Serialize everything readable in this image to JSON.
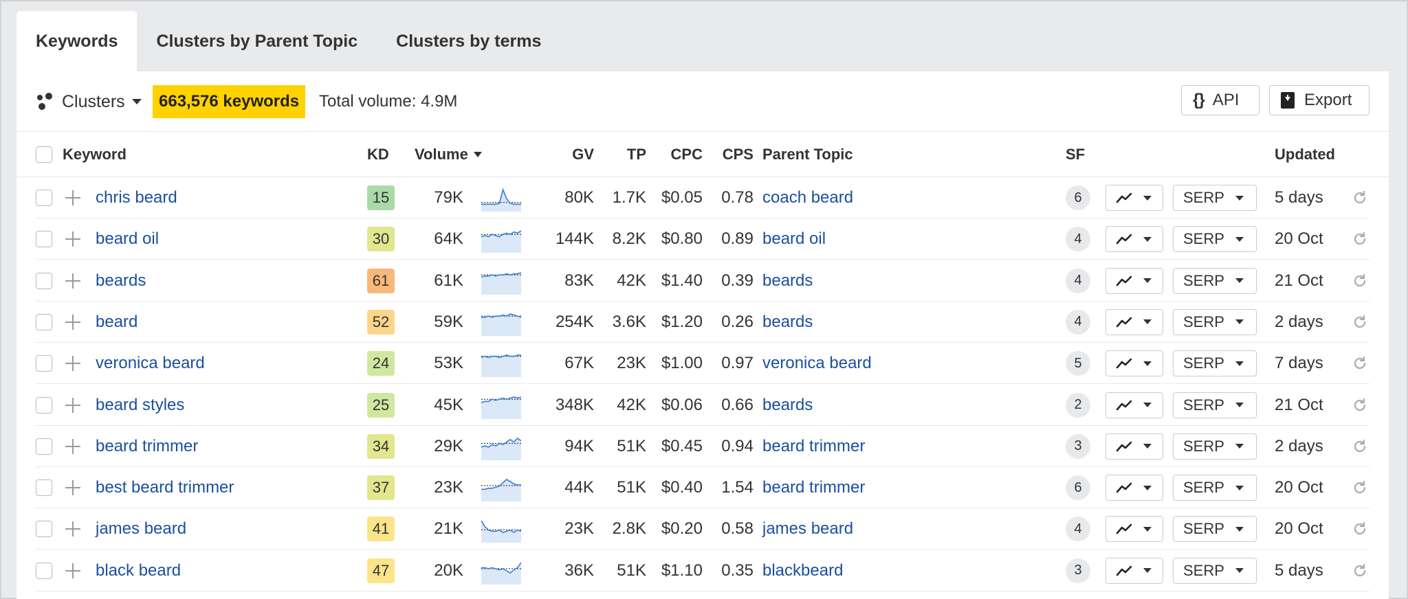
{
  "tabs": [
    {
      "label": "Keywords",
      "active": true
    },
    {
      "label": "Clusters by Parent Topic",
      "active": false
    },
    {
      "label": "Clusters by terms",
      "active": false
    }
  ],
  "toolbar": {
    "clusters_label": "Clusters",
    "keywords_count": "663,576 keywords",
    "total_volume": "Total volume: 4.9M",
    "api_label": "API",
    "export_label": "Export"
  },
  "columns": {
    "keyword": "Keyword",
    "kd": "KD",
    "volume": "Volume",
    "gv": "GV",
    "tp": "TP",
    "cpc": "CPC",
    "cps": "CPS",
    "parent_topic": "Parent Topic",
    "sf": "SF",
    "updated": "Updated"
  },
  "colors": {
    "kd_green": "#a8dba8",
    "kd_lightgreen": "#cfe8a0",
    "kd_yellowgreen": "#e2e68e",
    "kd_yellow": "#fbe48a",
    "kd_lightorange": "#fdd58a",
    "kd_orange": "#f9b87a",
    "link": "#1b4fa0",
    "highlight": "#ffd200"
  },
  "rows": [
    {
      "keyword": "chris beard",
      "kd": "15",
      "kd_color": "#a8dba8",
      "volume": "79K",
      "trend": [
        2,
        2,
        2,
        2,
        2,
        3,
        18,
        8,
        3,
        2,
        2,
        2
      ],
      "gv": "80K",
      "tp": "1.7K",
      "cpc": "$0.05",
      "cps": "0.78",
      "parent_topic": "coach beard",
      "sf": "6",
      "serp": "SERP",
      "updated": "5 days"
    },
    {
      "keyword": "beard oil",
      "kd": "30",
      "kd_color": "#e2e68e",
      "volume": "64K",
      "trend": [
        9,
        10,
        9,
        11,
        10,
        9,
        11,
        12,
        11,
        13,
        12,
        14
      ],
      "gv": "144K",
      "tp": "8.2K",
      "cpc": "$0.80",
      "cps": "0.89",
      "parent_topic": "beard oil",
      "sf": "4",
      "serp": "SERP",
      "updated": "20 Oct"
    },
    {
      "keyword": "beards",
      "kd": "61",
      "kd_color": "#f9b87a",
      "volume": "61K",
      "trend": [
        11,
        12,
        12,
        13,
        12,
        13,
        13,
        14,
        13,
        14,
        14,
        15
      ],
      "gv": "83K",
      "tp": "42K",
      "cpc": "$1.40",
      "cps": "0.39",
      "parent_topic": "beards",
      "sf": "4",
      "serp": "SERP",
      "updated": "21 Oct"
    },
    {
      "keyword": "beard",
      "kd": "52",
      "kd_color": "#fdd58a",
      "volume": "59K",
      "trend": [
        12,
        12,
        13,
        12,
        13,
        13,
        14,
        13,
        15,
        14,
        13,
        12
      ],
      "gv": "254K",
      "tp": "3.6K",
      "cpc": "$1.20",
      "cps": "0.26",
      "parent_topic": "beards",
      "sf": "4",
      "serp": "SERP",
      "updated": "2 days"
    },
    {
      "keyword": "veronica beard",
      "kd": "24",
      "kd_color": "#cfe8a0",
      "volume": "53K",
      "trend": [
        12,
        13,
        12,
        13,
        13,
        12,
        13,
        14,
        13,
        13,
        14,
        14
      ],
      "gv": "67K",
      "tp": "23K",
      "cpc": "$1.00",
      "cps": "0.97",
      "parent_topic": "veronica beard",
      "sf": "5",
      "serp": "SERP",
      "updated": "7 days"
    },
    {
      "keyword": "beard styles",
      "kd": "25",
      "kd_color": "#cfe8a0",
      "volume": "45K",
      "trend": [
        10,
        11,
        11,
        13,
        12,
        13,
        14,
        13,
        14,
        15,
        14,
        15
      ],
      "gv": "348K",
      "tp": "42K",
      "cpc": "$0.06",
      "cps": "0.66",
      "parent_topic": "beards",
      "sf": "2",
      "serp": "SERP",
      "updated": "21 Oct"
    },
    {
      "keyword": "beard trimmer",
      "kd": "34",
      "kd_color": "#e2e68e",
      "volume": "29K",
      "trend": [
        6,
        7,
        6,
        8,
        7,
        9,
        8,
        10,
        12,
        10,
        13,
        11
      ],
      "gv": "94K",
      "tp": "51K",
      "cpc": "$0.45",
      "cps": "0.94",
      "parent_topic": "beard trimmer",
      "sf": "3",
      "serp": "SERP",
      "updated": "2 days"
    },
    {
      "keyword": "best beard trimmer",
      "kd": "37",
      "kd_color": "#e2e68e",
      "volume": "23K",
      "trend": [
        6,
        6,
        7,
        7,
        8,
        9,
        12,
        15,
        13,
        11,
        10,
        10
      ],
      "gv": "44K",
      "tp": "51K",
      "cpc": "$0.40",
      "cps": "1.54",
      "parent_topic": "beard trimmer",
      "sf": "6",
      "serp": "SERP",
      "updated": "20 Oct"
    },
    {
      "keyword": "james beard",
      "kd": "41",
      "kd_color": "#fbe48a",
      "volume": "21K",
      "trend": [
        14,
        9,
        6,
        5,
        5,
        6,
        4,
        5,
        6,
        4,
        6,
        5
      ],
      "gv": "23K",
      "tp": "2.8K",
      "cpc": "$0.20",
      "cps": "0.58",
      "parent_topic": "james beard",
      "sf": "4",
      "serp": "SERP",
      "updated": "20 Oct"
    },
    {
      "keyword": "black beard",
      "kd": "47",
      "kd_color": "#fbe48a",
      "volume": "20K",
      "trend": [
        11,
        11,
        10,
        11,
        10,
        9,
        10,
        8,
        6,
        9,
        11,
        16
      ],
      "gv": "36K",
      "tp": "51K",
      "cpc": "$1.10",
      "cps": "0.35",
      "parent_topic": "blackbeard",
      "sf": "3",
      "serp": "SERP",
      "updated": "5 days"
    }
  ]
}
